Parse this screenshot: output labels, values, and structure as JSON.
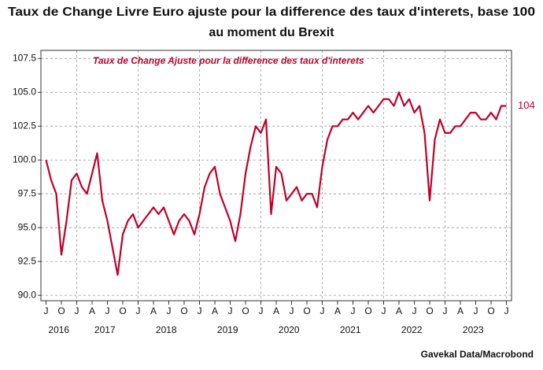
{
  "chart_data": {
    "type": "line",
    "title": [
      "Taux de Change Livre Euro ajuste pour la difference des taux d'interets, base 100",
      "au moment du Brexit"
    ],
    "source": "Gavekal Data/Macrobond",
    "x": [
      "2016-07",
      "2016-08",
      "2016-09",
      "2016-10",
      "2016-11",
      "2016-12",
      "2017-01",
      "2017-02",
      "2017-03",
      "2017-04",
      "2017-05",
      "2017-06",
      "2017-07",
      "2017-08",
      "2017-09",
      "2017-10",
      "2017-11",
      "2017-12",
      "2018-01",
      "2018-02",
      "2018-03",
      "2018-04",
      "2018-05",
      "2018-06",
      "2018-07",
      "2018-08",
      "2018-09",
      "2018-10",
      "2018-11",
      "2018-12",
      "2019-01",
      "2019-02",
      "2019-03",
      "2019-04",
      "2019-05",
      "2019-06",
      "2019-07",
      "2019-08",
      "2019-09",
      "2019-10",
      "2019-11",
      "2019-12",
      "2020-01",
      "2020-02",
      "2020-03",
      "2020-04",
      "2020-05",
      "2020-06",
      "2020-07",
      "2020-08",
      "2020-09",
      "2020-10",
      "2020-11",
      "2020-12",
      "2021-01",
      "2021-02",
      "2021-03",
      "2021-04",
      "2021-05",
      "2021-06",
      "2021-07",
      "2021-08",
      "2021-09",
      "2021-10",
      "2021-11",
      "2021-12",
      "2022-01",
      "2022-02",
      "2022-03",
      "2022-04",
      "2022-05",
      "2022-06",
      "2022-07",
      "2022-08",
      "2022-09",
      "2022-10",
      "2022-11",
      "2022-12",
      "2023-01",
      "2023-02",
      "2023-03",
      "2023-04",
      "2023-05",
      "2023-06",
      "2023-07",
      "2023-08",
      "2023-09",
      "2023-10",
      "2023-11",
      "2023-12",
      "2024-01"
    ],
    "series": [
      {
        "name": "Taux de Change Ajuste pour la difference des taux d'interets",
        "color": "#c0002a",
        "values": [
          100.0,
          98.5,
          97.5,
          93.0,
          95.5,
          98.5,
          99.0,
          98.0,
          97.5,
          99.0,
          100.5,
          97.0,
          95.5,
          93.5,
          91.5,
          94.5,
          95.5,
          96.0,
          95.0,
          95.5,
          96.0,
          96.5,
          96.0,
          96.5,
          95.5,
          94.5,
          95.5,
          96.0,
          95.5,
          94.5,
          96.0,
          98.0,
          99.0,
          99.5,
          97.5,
          96.5,
          95.5,
          94.0,
          96.0,
          99.0,
          101.0,
          102.5,
          102.0,
          103.0,
          96.0,
          99.5,
          99.0,
          97.0,
          97.5,
          98.0,
          97.0,
          97.5,
          97.5,
          96.5,
          99.5,
          101.5,
          102.5,
          102.5,
          103.0,
          103.0,
          103.5,
          103.0,
          103.5,
          104.0,
          103.5,
          104.0,
          104.5,
          104.5,
          104.0,
          105.0,
          104.0,
          104.5,
          103.5,
          104.0,
          102.0,
          97.0,
          101.5,
          103.0,
          102.0,
          102.0,
          102.5,
          102.5,
          103.0,
          103.5,
          103.5,
          103.0,
          103.0,
          103.5,
          103.0,
          104.0,
          104.0
        ],
        "value_labels": [
          null,
          null,
          null,
          null,
          null,
          null,
          null,
          null,
          null,
          null,
          null,
          null,
          null,
          null,
          null,
          null,
          null,
          null,
          null,
          null,
          null,
          null,
          null,
          null,
          null,
          null,
          null,
          null,
          null,
          null,
          null,
          null,
          null,
          null,
          null,
          null,
          null,
          null,
          null,
          null,
          null,
          null,
          null,
          null,
          null,
          null,
          null,
          null,
          null,
          null,
          null,
          null,
          null,
          null,
          null,
          null,
          null,
          null,
          null,
          null,
          null,
          null,
          null,
          null,
          null,
          null,
          null,
          null,
          null,
          null,
          null,
          null,
          null,
          null,
          null,
          null,
          null,
          null,
          null,
          null,
          null,
          null,
          null,
          null,
          null,
          null,
          null,
          null,
          null,
          null,
          "104"
        ]
      }
    ],
    "xlim": [
      "2016-06",
      "2024-02"
    ],
    "xticks": [
      {
        "value": "2016-07",
        "label": "J"
      },
      {
        "value": "2016-10",
        "label": "O"
      },
      {
        "value": "2017-01",
        "label": "J"
      },
      {
        "value": "2017-04",
        "label": "A"
      },
      {
        "value": "2017-07",
        "label": "J"
      },
      {
        "value": "2017-10",
        "label": "O"
      },
      {
        "value": "2018-01",
        "label": "J"
      },
      {
        "value": "2018-04",
        "label": "A"
      },
      {
        "value": "2018-07",
        "label": "J"
      },
      {
        "value": "2018-10",
        "label": "O"
      },
      {
        "value": "2019-01",
        "label": "J"
      },
      {
        "value": "2019-04",
        "label": "A"
      },
      {
        "value": "2019-07",
        "label": "J"
      },
      {
        "value": "2019-10",
        "label": "O"
      },
      {
        "value": "2020-01",
        "label": "J"
      },
      {
        "value": "2020-04",
        "label": "A"
      },
      {
        "value": "2020-07",
        "label": "J"
      },
      {
        "value": "2020-10",
        "label": "O"
      },
      {
        "value": "2021-01",
        "label": "J"
      },
      {
        "value": "2021-04",
        "label": "A"
      },
      {
        "value": "2021-07",
        "label": "J"
      },
      {
        "value": "2021-10",
        "label": "O"
      },
      {
        "value": "2022-01",
        "label": "J"
      },
      {
        "value": "2022-04",
        "label": "A"
      },
      {
        "value": "2022-07",
        "label": "J"
      },
      {
        "value": "2022-10",
        "label": "O"
      },
      {
        "value": "2023-01",
        "label": "J"
      },
      {
        "value": "2023-04",
        "label": "A"
      },
      {
        "value": "2023-07",
        "label": "J"
      },
      {
        "value": "2023-10",
        "label": "O"
      },
      {
        "value": "2024-01",
        "label": "J"
      }
    ],
    "years": [
      "2016",
      "2017",
      "2018",
      "2019",
      "2020",
      "2021",
      "2022",
      "2023"
    ],
    "ylim": [
      89.6,
      108.1
    ],
    "yticks": [
      {
        "value": 107.5,
        "label": "107.5"
      },
      {
        "value": 105,
        "label": "105.0"
      },
      {
        "value": 102.5,
        "label": "102.5"
      },
      {
        "value": 100,
        "label": "100.0"
      },
      {
        "value": 97.5,
        "label": "97.5"
      },
      {
        "value": 95,
        "label": "95.0"
      },
      {
        "value": 92.5,
        "label": "92.5"
      },
      {
        "value": 90,
        "label": "90.0"
      }
    ],
    "grid": true
  }
}
